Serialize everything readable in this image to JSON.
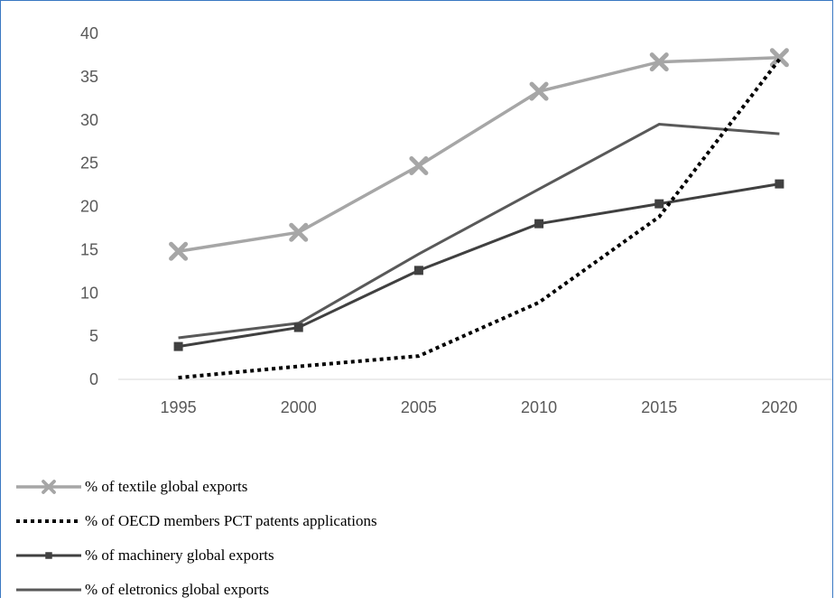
{
  "chart_data": {
    "type": "line",
    "title": "",
    "xlabel": "",
    "ylabel": "",
    "categories": [
      "1995",
      "2000",
      "2005",
      "2010",
      "2015",
      "2020"
    ],
    "ylim": [
      0,
      40
    ],
    "yticks": [
      "0",
      "5",
      "10",
      "15",
      "20",
      "25",
      "30",
      "35",
      "40"
    ],
    "grid": false,
    "legend_position": "bottom-left",
    "series": [
      {
        "name": "% of textile global exports",
        "values": [
          14.8,
          17.0,
          24.7,
          33.3,
          36.7,
          37.2
        ],
        "color": "#a6a6a6",
        "marker": "x",
        "dash": "solid"
      },
      {
        "name": "% of OECD members PCT patents applications",
        "values": [
          0.2,
          1.5,
          2.7,
          8.9,
          18.8,
          37.0
        ],
        "color": "#000000",
        "marker": "none",
        "dash": "dotted"
      },
      {
        "name": "% of machinery global exports",
        "values": [
          3.8,
          6.0,
          12.6,
          18.0,
          20.3,
          22.6
        ],
        "color": "#404040",
        "marker": "square",
        "dash": "solid"
      },
      {
        "name": " % of eletronics global exports",
        "values": [
          4.8,
          6.5,
          14.5,
          22.0,
          29.5,
          28.4
        ],
        "color": "#595959",
        "marker": "none",
        "dash": "solid"
      }
    ]
  }
}
